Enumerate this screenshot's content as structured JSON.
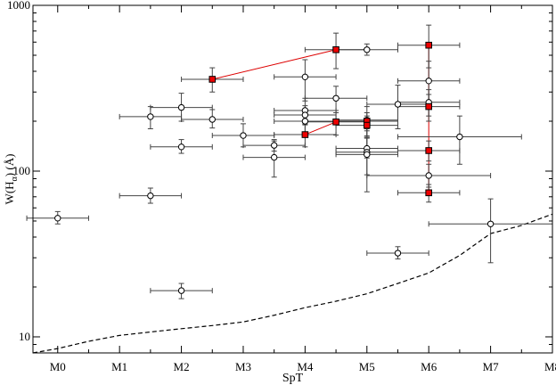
{
  "chart_data": {
    "type": "scatter",
    "xlabel": "SpT",
    "ylabel_main": "W(H",
    "ylabel_sub": "α",
    "ylabel_tail": ") (Å)",
    "y_scale": "log",
    "xlim": [
      -0.4,
      8.0
    ],
    "ylim": [
      8,
      1000
    ],
    "x_ticks": [
      {
        "v": 0,
        "label": "M0"
      },
      {
        "v": 1,
        "label": "M1"
      },
      {
        "v": 2,
        "label": "M2"
      },
      {
        "v": 3,
        "label": "M3"
      },
      {
        "v": 4,
        "label": "M4"
      },
      {
        "v": 5,
        "label": "M5"
      },
      {
        "v": 6,
        "label": "M6"
      },
      {
        "v": 7,
        "label": "M7"
      },
      {
        "v": 8,
        "label": "M8"
      }
    ],
    "y_ticks": [
      {
        "v": 10,
        "label": "10"
      },
      {
        "v": 100,
        "label": "100"
      },
      {
        "v": 1000,
        "label": "1000"
      }
    ],
    "series": [
      {
        "marker": "circle",
        "color": "#000000",
        "fill": "#ffffff",
        "points": [
          {
            "x": 0.0,
            "y": 52,
            "xerr": 0.5,
            "ylo": 48,
            "yhi": 57
          },
          {
            "x": 1.5,
            "y": 71,
            "xerr": 0.5,
            "ylo": 64,
            "yhi": 79
          },
          {
            "x": 2.0,
            "y": 19,
            "xerr": 0.5,
            "ylo": 17,
            "yhi": 21
          },
          {
            "x": 1.5,
            "y": 213,
            "xerr": 0.5,
            "ylo": 180,
            "yhi": 245
          },
          {
            "x": 2.0,
            "y": 242,
            "xerr": 0.5,
            "ylo": 200,
            "yhi": 295
          },
          {
            "x": 2.0,
            "y": 140,
            "xerr": 0.5,
            "ylo": 128,
            "yhi": 155
          },
          {
            "x": 2.5,
            "y": 205,
            "xerr": 0.5,
            "ylo": 182,
            "yhi": 235
          },
          {
            "x": 3.0,
            "y": 164,
            "xerr": 0.5,
            "ylo": 140,
            "yhi": 193
          },
          {
            "x": 3.5,
            "y": 143,
            "xerr": 0.5,
            "ylo": 132,
            "yhi": 155
          },
          {
            "x": 3.5,
            "y": 121,
            "xerr": 0.5,
            "ylo": 92,
            "yhi": 152
          },
          {
            "x": 4.0,
            "y": 370,
            "xerr": 0.5,
            "ylo": 265,
            "yhi": 470
          },
          {
            "x": 4.0,
            "y": 232,
            "xerr": 0.5,
            "ylo": 195,
            "yhi": 275
          },
          {
            "x": 4.0,
            "y": 218,
            "xerr": 0.5,
            "ylo": 190,
            "yhi": 248
          },
          {
            "x": 4.0,
            "y": 200,
            "xerr": 0.5,
            "ylo": 170,
            "yhi": 228
          },
          {
            "x": 4.5,
            "y": 275,
            "xerr": 0.5,
            "ylo": 225,
            "yhi": 325
          },
          {
            "x": 5.0,
            "y": 540,
            "xerr": 0.5,
            "ylo": 500,
            "yhi": 585
          },
          {
            "x": 5.0,
            "y": 203,
            "xerr": 0.5,
            "ylo": 160,
            "yhi": 245
          },
          {
            "x": 5.0,
            "y": 137,
            "xerr": 0.5,
            "ylo": 120,
            "yhi": 158
          },
          {
            "x": 5.0,
            "y": 130,
            "xerr": 0.5,
            "ylo": 95,
            "yhi": 160
          },
          {
            "x": 5.0,
            "y": 126,
            "xerr": 0.5,
            "ylo": 75,
            "yhi": 180
          },
          {
            "x": 5.5,
            "y": 253,
            "xerr": 0.5,
            "ylo": 180,
            "yhi": 330
          },
          {
            "x": 5.5,
            "y": 32,
            "xerr": 0.5,
            "ylo": 29.5,
            "yhi": 35
          },
          {
            "x": 6.0,
            "y": 350,
            "xerr": 0.5,
            "ylo": 250,
            "yhi": 460
          },
          {
            "x": 6.0,
            "y": 260,
            "xerr": 0.5,
            "ylo": 215,
            "yhi": 310
          },
          {
            "x": 6.0,
            "y": 94,
            "xerr": 1.0,
            "ylo": 80,
            "yhi": 110
          },
          {
            "x": 6.5,
            "y": 161,
            "xerr": 1.0,
            "ylo": 110,
            "yhi": 215
          },
          {
            "x": 7.0,
            "y": 48,
            "xerr": 1.0,
            "ylo": 28,
            "yhi": 68
          }
        ]
      },
      {
        "marker": "square",
        "color": "#cc0000",
        "fill": "#ee0000",
        "points": [
          {
            "x": 2.5,
            "y": 358,
            "xerr": 0.5,
            "ylo": 300,
            "yhi": 420
          },
          {
            "x": 4.5,
            "y": 540,
            "xerr": 0.5,
            "ylo": 415,
            "yhi": 680
          },
          {
            "x": 4.5,
            "y": 198,
            "xerr": 0.5,
            "ylo": 165,
            "yhi": 232
          },
          {
            "x": 4.0,
            "y": 166,
            "xerr": 0.5,
            "ylo": 140,
            "yhi": 192
          },
          {
            "x": 5.0,
            "y": 200,
            "xerr": 0.5,
            "ylo": 175,
            "yhi": 225
          },
          {
            "x": 5.0,
            "y": 189,
            "xerr": 0.5,
            "ylo": 163,
            "yhi": 215
          },
          {
            "x": 6.0,
            "y": 575,
            "xerr": 0.5,
            "ylo": 420,
            "yhi": 760
          },
          {
            "x": 6.0,
            "y": 245,
            "xerr": 0.5,
            "ylo": 200,
            "yhi": 290
          },
          {
            "x": 6.0,
            "y": 133,
            "xerr": 0.5,
            "ylo": 115,
            "yhi": 152
          },
          {
            "x": 6.0,
            "y": 74,
            "xerr": 0.5,
            "ylo": 65,
            "yhi": 83
          }
        ]
      }
    ],
    "connectors": [
      {
        "color": "#dd0000",
        "points": [
          [
            2.5,
            358
          ],
          [
            4.5,
            540
          ]
        ]
      },
      {
        "color": "#dd0000",
        "points": [
          [
            4.0,
            166
          ],
          [
            4.5,
            198
          ]
        ]
      },
      {
        "color": "#dd0000",
        "points": [
          [
            6.0,
            575
          ],
          [
            6.0,
            74
          ]
        ]
      }
    ],
    "threshold_curve": {
      "style": "dashed",
      "color": "#000000",
      "points": [
        [
          -0.4,
          8.0
        ],
        [
          0.0,
          8.5
        ],
        [
          0.5,
          9.4
        ],
        [
          1.0,
          10.2
        ],
        [
          1.5,
          10.7
        ],
        [
          2.0,
          11.2
        ],
        [
          2.5,
          11.7
        ],
        [
          3.0,
          12.3
        ],
        [
          3.5,
          13.5
        ],
        [
          4.0,
          15.0
        ],
        [
          4.5,
          16.4
        ],
        [
          5.0,
          18.2
        ],
        [
          5.5,
          21.0
        ],
        [
          6.0,
          24.3
        ],
        [
          6.5,
          31.0
        ],
        [
          7.0,
          42.0
        ],
        [
          7.5,
          47.0
        ],
        [
          8.0,
          55.0
        ]
      ]
    }
  }
}
